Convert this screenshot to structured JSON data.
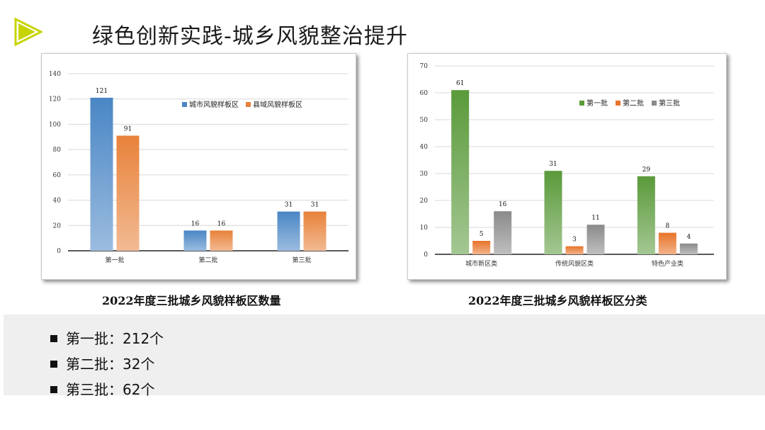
{
  "slide": {
    "title": "绿色创新实践-城乡风貌整治提升",
    "accent_color": "#c8d400",
    "icon": "play-triangle-icon"
  },
  "chart_data": [
    {
      "type": "bar",
      "categories": [
        "第一批",
        "第二批",
        "第三批"
      ],
      "series": [
        {
          "name": "城市风貌样板区",
          "values": [
            121,
            16,
            31
          ],
          "color": "#4a86c5"
        },
        {
          "name": "县域风貌样板区",
          "values": [
            91,
            16,
            31
          ],
          "color": "#e8823a"
        }
      ],
      "ylim": [
        0,
        140
      ],
      "yticks": [
        0,
        20,
        40,
        60,
        80,
        100,
        120,
        140
      ],
      "grid": true,
      "legend": "top-right",
      "caption": "2022年度三批城乡风貌样板区数量"
    },
    {
      "type": "bar",
      "categories": [
        "城市新区类",
        "传统风貌区类",
        "特色产业类"
      ],
      "series": [
        {
          "name": "第一批",
          "values": [
            61,
            31,
            29
          ],
          "color": "#5a9a3a"
        },
        {
          "name": "第二批",
          "values": [
            5,
            3,
            8
          ],
          "color": "#e8742a"
        },
        {
          "name": "第三批",
          "values": [
            16,
            11,
            4
          ],
          "color": "#8a8a8a"
        }
      ],
      "ylim": [
        0,
        70
      ],
      "yticks": [
        0,
        10,
        20,
        30,
        40,
        50,
        60,
        70
      ],
      "grid": true,
      "legend": "top-right",
      "caption": "2022年度三批城乡风貌样板区分类"
    }
  ],
  "summary": {
    "items": [
      {
        "text": "第一批：212个"
      },
      {
        "text": "第二批：32个"
      },
      {
        "text": "第三批：62个"
      }
    ]
  }
}
